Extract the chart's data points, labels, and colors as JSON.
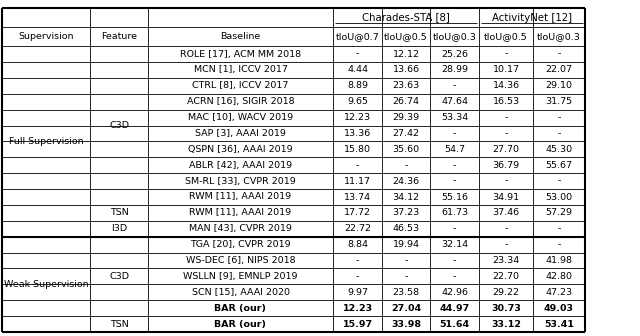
{
  "title_charades": "Charades-STA [8]",
  "title_activitynet": "ActivityNet [12]",
  "rows": [
    [
      "Full Supervision",
      "C3D",
      "ROLE [17], ACM MM 2018",
      "-",
      "12.12",
      "25.26",
      "-",
      "-"
    ],
    [
      "Full Supervision",
      "C3D",
      "MCN [1], ICCV 2017",
      "4.44",
      "13.66",
      "28.99",
      "10.17",
      "22.07"
    ],
    [
      "Full Supervision",
      "C3D",
      "CTRL [8], ICCV 2017",
      "8.89",
      "23.63",
      "-",
      "14.36",
      "29.10"
    ],
    [
      "Full Supervision",
      "C3D",
      "ACRN [16], SIGIR 2018",
      "9.65",
      "26.74",
      "47.64",
      "16.53",
      "31.75"
    ],
    [
      "Full Supervision",
      "C3D",
      "MAC [10], WACV 2019",
      "12.23",
      "29.39",
      "53.34",
      "-",
      "-"
    ],
    [
      "Full Supervision",
      "C3D",
      "SAP [3], AAAI 2019",
      "13.36",
      "27.42",
      "-",
      "-",
      "-"
    ],
    [
      "Full Supervision",
      "C3D",
      "QSPN [36], AAAI 2019",
      "15.80",
      "35.60",
      "54.7",
      "27.70",
      "45.30"
    ],
    [
      "Full Supervision",
      "C3D",
      "ABLR [42], AAAI 2019",
      "-",
      "-",
      "-",
      "36.79",
      "55.67"
    ],
    [
      "Full Supervision",
      "C3D",
      "SM-RL [33], CVPR 2019",
      "11.17",
      "24.36",
      "-",
      "-",
      "-"
    ],
    [
      "Full Supervision",
      "C3D",
      "RWM [11], AAAI 2019",
      "13.74",
      "34.12",
      "55.16",
      "34.91",
      "53.00"
    ],
    [
      "Full Supervision",
      "TSN",
      "RWM [11], AAAI 2019",
      "17.72",
      "37.23",
      "61.73",
      "37.46",
      "57.29"
    ],
    [
      "Full Supervision",
      "I3D",
      "MAN [43], CVPR 2019",
      "22.72",
      "46.53",
      "-",
      "-",
      "-"
    ],
    [
      "Weak Supervision",
      "C3D",
      "TGA [20], CVPR 2019",
      "8.84",
      "19.94",
      "32.14",
      "-",
      "-"
    ],
    [
      "Weak Supervision",
      "C3D",
      "WS-DEC [6], NIPS 2018",
      "-",
      "-",
      "-",
      "23.34",
      "41.98"
    ],
    [
      "Weak Supervision",
      "C3D",
      "WSLLN [9], EMNLP 2019",
      "-",
      "-",
      "-",
      "22.70",
      "42.80"
    ],
    [
      "Weak Supervision",
      "C3D",
      "SCN [15], AAAI 2020",
      "9.97",
      "23.58",
      "42.96",
      "29.22",
      "47.23"
    ],
    [
      "Weak Supervision",
      "C3D",
      "BAR (our)",
      "12.23",
      "27.04",
      "44.97",
      "30.73",
      "49.03"
    ],
    [
      "Weak Supervision",
      "TSN",
      "BAR (our)",
      "15.97",
      "33.98",
      "51.64",
      "33.12",
      "53.41"
    ]
  ],
  "bold_rows": [
    16,
    17
  ],
  "bg_color": "#ffffff",
  "font_size": 6.8,
  "fig_width": 6.4,
  "fig_height": 3.36,
  "dpi": 100
}
